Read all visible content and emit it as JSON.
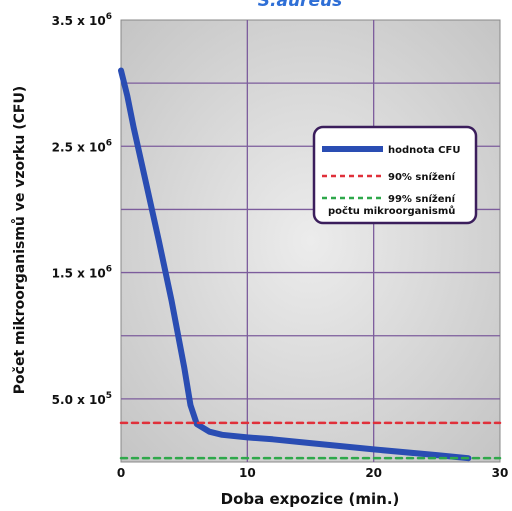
{
  "chart_data": {
    "type": "line",
    "title": "S.aureus",
    "xlabel": "Doba expozice (min.)",
    "ylabel": "Počet mikroorganismů ve vzorku (CFU)",
    "xlim": [
      0,
      30
    ],
    "ylim": [
      0,
      3500000
    ],
    "grid": true,
    "x_ticks": [
      0,
      10,
      20,
      30
    ],
    "x_tick_labels": [
      "0",
      "10",
      "20",
      "30"
    ],
    "y_ticks": [
      500000,
      1500000,
      2500000,
      3500000
    ],
    "y_tick_labels": [
      {
        "mantissa": "5.0 x 10",
        "exp": "5"
      },
      {
        "mantissa": "1.5 x 10",
        "exp": "6"
      },
      {
        "mantissa": "2.5 x 10",
        "exp": "6"
      },
      {
        "mantissa": "3.5 x 10",
        "exp": "6"
      }
    ],
    "legend_position": "right",
    "series": [
      {
        "name": "hodnota CFU",
        "color": "#2a4db3",
        "style": "solid",
        "x": [
          0,
          0.5,
          1,
          2,
          3,
          4,
          5,
          5.5,
          6,
          7,
          8,
          10,
          12,
          15,
          20,
          25,
          27.5
        ],
        "y": [
          3100000,
          2900000,
          2650000,
          2200000,
          1750000,
          1280000,
          750000,
          450000,
          300000,
          240000,
          215000,
          195000,
          180000,
          150000,
          100000,
          55000,
          30000
        ]
      },
      {
        "name": "90% snížení",
        "color": "#e0303a",
        "style": "dashed",
        "x": [
          0,
          30
        ],
        "y": [
          310000,
          310000
        ]
      },
      {
        "name": "99% snížení počtu mikroorganismů",
        "label_lines": [
          "99% snížení",
          "počtu mikroorganismů"
        ],
        "color": "#2ea84a",
        "style": "dashed",
        "x": [
          0,
          30
        ],
        "y": [
          31000,
          31000
        ]
      }
    ],
    "colors": {
      "plot_background": "#d9d9d9",
      "grid": "#7c5c9c",
      "legend_border": "#3b1e5c",
      "title": "#2f6fd6"
    }
  }
}
